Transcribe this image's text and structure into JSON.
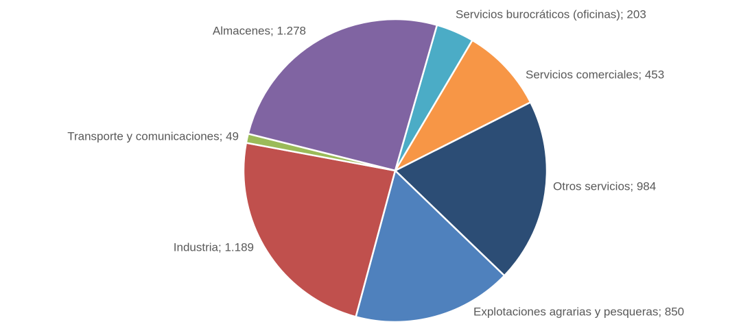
{
  "chart_data": {
    "type": "pie",
    "values": [
      203,
      453,
      984,
      850,
      1189,
      49,
      1278
    ],
    "value_labels": [
      "Servicios burocráticos (oficinas); 203",
      "Servicios comerciales; 453",
      "Otros servicios; 984",
      "Explotaciones agrarias y pesqueras; 850",
      "Industria; 1.189",
      "Transporte y comunicaciones; 49",
      "Almacenes; 1.278"
    ],
    "colors": [
      "#4bacc6",
      "#f79646",
      "#2c4d75",
      "#4f81bd",
      "#c0504d",
      "#9bbb59",
      "#8064a2"
    ]
  }
}
